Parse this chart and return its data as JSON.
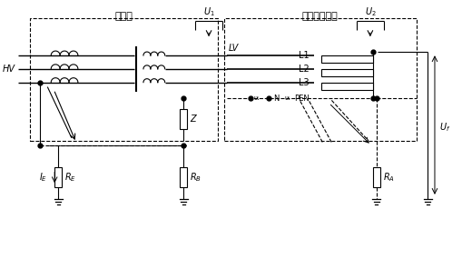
{
  "fig_width": 5.1,
  "fig_height": 2.85,
  "dpi": 100,
  "bg_color": "#ffffff",
  "labels": {
    "biandianso": "变电所",
    "diyazhuangzhi": "低压电气装置",
    "HV": "HV",
    "LV": "LV",
    "L1": "L1",
    "L2": "L2",
    "L3": "L3",
    "Z": "Z",
    "RE": "$R_E$",
    "RB": "$R_B$",
    "RA": "$R_A$",
    "IE": "$I_E$",
    "Uf": "$U_f$",
    "U1": "$U_1$",
    "U2": "$U_2$",
    "N": "N",
    "PEN": "PEN"
  }
}
